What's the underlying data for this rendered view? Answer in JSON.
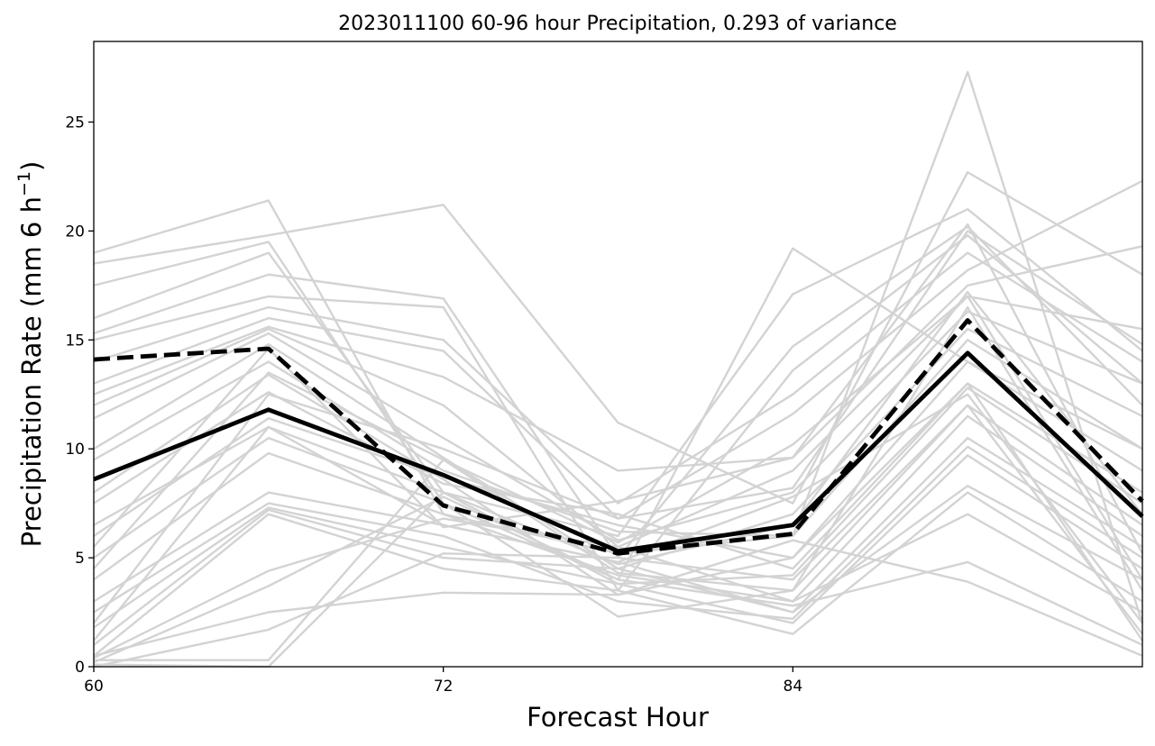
{
  "chart_data": {
    "type": "line",
    "title": "2023011100 60-96 hour Precipitation, 0.293 of variance",
    "xlabel": "Forecast Hour",
    "ylabel": "Precipitation Rate (mm 6 h",
    "ylabel_superscript": "−1",
    "ylabel_suffix": ")",
    "x": [
      60,
      66,
      72,
      78,
      84,
      90,
      96
    ],
    "xlim": [
      60,
      96
    ],
    "ylim": [
      0,
      28.7
    ],
    "xticks": [
      60,
      72,
      84
    ],
    "yticks": [
      0,
      5,
      10,
      15,
      20,
      25
    ],
    "grid": false,
    "legend": "none",
    "colors": {
      "ensemble": "#d3d3d3",
      "highlight": "#000000"
    },
    "series": [
      {
        "style": "solid-bold",
        "values": [
          8.6,
          11.8,
          8.8,
          5.3,
          6.5,
          14.4,
          6.9
        ]
      },
      {
        "style": "dashed-bold",
        "values": [
          14.1,
          14.6,
          7.4,
          5.2,
          6.1,
          15.9,
          7.6
        ]
      }
    ],
    "ensemble_members": [
      [
        19.0,
        21.4,
        7.0,
        5.2,
        6.0,
        27.3,
        2.0
      ],
      [
        18.5,
        19.8,
        21.2,
        11.2,
        7.5,
        22.7,
        18.0
      ],
      [
        17.5,
        19.5,
        7.5,
        4.0,
        19.2,
        14.0,
        10.0
      ],
      [
        16.0,
        19.0,
        8.0,
        6.0,
        17.1,
        21.0,
        14.5
      ],
      [
        15.3,
        18.0,
        16.9,
        5.0,
        14.7,
        20.2,
        12.0
      ],
      [
        15.0,
        17.0,
        16.5,
        3.5,
        13.6,
        19.8,
        13.0
      ],
      [
        14.0,
        16.5,
        15.0,
        7.5,
        12.5,
        19.0,
        14.0
      ],
      [
        13.0,
        16.0,
        14.5,
        6.8,
        11.6,
        18.2,
        22.3
      ],
      [
        12.5,
        15.6,
        13.3,
        9.0,
        9.6,
        17.5,
        19.3
      ],
      [
        12.0,
        15.5,
        12.0,
        5.5,
        9.0,
        17.0,
        15.5
      ],
      [
        11.4,
        15.3,
        10.5,
        5.8,
        8.0,
        16.3,
        13.0
      ],
      [
        10.0,
        14.8,
        9.6,
        4.5,
        7.0,
        15.5,
        11.5
      ],
      [
        9.5,
        14.0,
        9.0,
        6.2,
        6.0,
        15.0,
        10.0
      ],
      [
        8.0,
        13.4,
        8.6,
        3.3,
        5.0,
        14.0,
        9.0
      ],
      [
        7.5,
        12.6,
        8.4,
        7.0,
        4.5,
        13.0,
        8.0
      ],
      [
        6.5,
        11.0,
        8.0,
        3.8,
        4.2,
        12.8,
        7.5
      ],
      [
        5.0,
        10.5,
        7.5,
        2.3,
        3.5,
        12.0,
        6.5
      ],
      [
        4.0,
        9.8,
        7.0,
        4.2,
        3.0,
        11.5,
        6.0
      ],
      [
        3.0,
        8.0,
        6.5,
        4.8,
        2.5,
        10.5,
        5.5
      ],
      [
        2.5,
        7.5,
        6.0,
        3.0,
        2.2,
        10.1,
        5.0
      ],
      [
        1.8,
        7.3,
        5.5,
        3.8,
        2.0,
        9.7,
        4.5
      ],
      [
        1.0,
        7.2,
        5.0,
        4.5,
        2.5,
        8.3,
        4.0
      ],
      [
        0.5,
        7.0,
        4.5,
        3.5,
        1.5,
        8.0,
        3.0
      ],
      [
        0.4,
        4.4,
        6.8,
        5.5,
        3.0,
        7.0,
        2.5
      ],
      [
        0.2,
        3.7,
        7.8,
        4.0,
        2.8,
        4.8,
        1.0
      ],
      [
        0.5,
        2.5,
        3.4,
        3.3,
        5.8,
        3.9,
        0.5
      ],
      [
        0.0,
        1.7,
        5.2,
        5.0,
        4.0,
        12.0,
        1.5
      ],
      [
        0.3,
        0.3,
        9.5,
        4.3,
        3.5,
        16.5,
        3.5
      ],
      [
        0.1,
        0.0,
        8.0,
        4.7,
        6.5,
        17.2,
        7.0
      ],
      [
        1.2,
        11.0,
        6.5,
        4.8,
        7.8,
        12.5,
        2.0
      ],
      [
        2.0,
        12.5,
        10.0,
        6.8,
        8.2,
        20.0,
        14.8
      ],
      [
        4.5,
        13.5,
        9.5,
        5.7,
        10.2,
        17.0,
        4.0
      ],
      [
        5.5,
        14.6,
        6.4,
        7.6,
        9.6,
        20.3,
        5.2
      ],
      [
        6.0,
        11.4,
        8.7,
        6.5,
        5.0,
        13.0,
        1.2
      ]
    ]
  }
}
